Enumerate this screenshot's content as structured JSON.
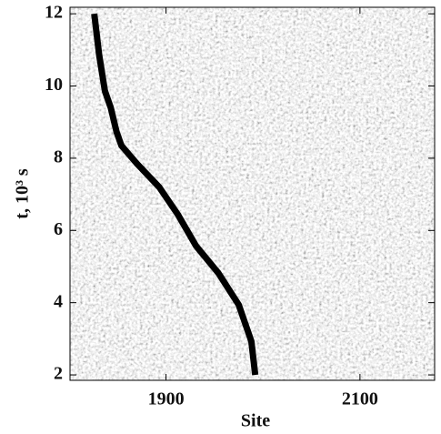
{
  "chart_data": {
    "type": "line",
    "x_label": "Site",
    "y_label": "t, 10³ s",
    "x": [
      1826,
      1831,
      1837,
      1843,
      1849,
      1854,
      1870,
      1893,
      1912,
      1931,
      1954,
      1975,
      1988,
      1992
    ],
    "values": [
      12,
      10.87,
      9.86,
      9.4,
      8.73,
      8.35,
      7.85,
      7.2,
      6.45,
      5.57,
      4.82,
      3.94,
      2.93,
      2.0
    ],
    "color": "#000000",
    "xlim": [
      1801,
      2177
    ],
    "xticks": [
      1900,
      2100
    ],
    "ylim": [
      1.85,
      12.18
    ],
    "yticks": [
      2,
      4,
      6,
      8,
      10,
      12
    ]
  }
}
